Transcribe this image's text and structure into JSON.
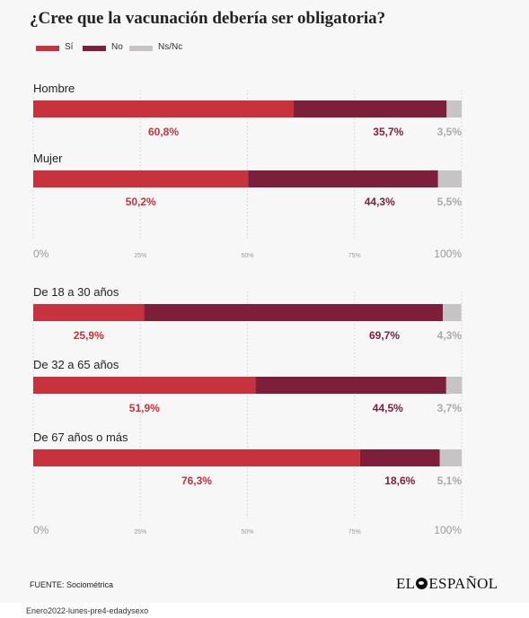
{
  "title": "¿Cree que la vacunación debería ser obligatoria?",
  "colors": {
    "si": "#c8323c",
    "no": "#7d1e3a",
    "nsnc": "#c6c4c4",
    "label_nsnc": "#a9a9a9",
    "background": "#f7f7f7"
  },
  "legend": [
    {
      "label": "Sí",
      "color": "#c8323c"
    },
    {
      "label": "No",
      "color": "#7d1e3a"
    },
    {
      "label": "Ns/Nc",
      "color": "#c6c4c4"
    }
  ],
  "chart_data": [
    {
      "type": "bar",
      "stacked": true,
      "orientation": "horizontal",
      "title": "¿Cree que la vacunación debería ser obligatoria?",
      "categories": [
        "Hombre",
        "Mujer"
      ],
      "series": [
        {
          "name": "Sí",
          "values": [
            60.8,
            50.2
          ],
          "labels": [
            "60,8%",
            "50,2%"
          ]
        },
        {
          "name": "No",
          "values": [
            35.7,
            44.3
          ],
          "labels": [
            "35,7%",
            "44,3%"
          ]
        },
        {
          "name": "Ns/Nc",
          "values": [
            3.5,
            5.5
          ],
          "labels": [
            "3,5%",
            "5,5%"
          ]
        }
      ],
      "xlim": [
        0,
        100
      ],
      "ticks": [
        {
          "value": 0,
          "label": "0%"
        },
        {
          "value": 25,
          "label": "25%"
        },
        {
          "value": 50,
          "label": "50%"
        },
        {
          "value": 75,
          "label": "75%"
        },
        {
          "value": 100,
          "label": "100%"
        }
      ],
      "grid": true,
      "legend_position": "top-left"
    },
    {
      "type": "bar",
      "stacked": true,
      "orientation": "horizontal",
      "categories": [
        "De 18 a 30 años",
        "De 32 a 65 años",
        "De 67 años o más"
      ],
      "series": [
        {
          "name": "Sí",
          "values": [
            25.9,
            51.9,
            76.3
          ],
          "labels": [
            "25,9%",
            "51,9%",
            "76,3%"
          ]
        },
        {
          "name": "No",
          "values": [
            69.7,
            44.5,
            18.6
          ],
          "labels": [
            "69,7%",
            "44,5%",
            "18,6%"
          ]
        },
        {
          "name": "Ns/Nc",
          "values": [
            4.3,
            3.7,
            5.1
          ],
          "labels": [
            "4,3%",
            "3,7%",
            "5,1%"
          ]
        }
      ],
      "xlim": [
        0,
        100
      ],
      "ticks": [
        {
          "value": 0,
          "label": "0%"
        },
        {
          "value": 25,
          "label": "25%"
        },
        {
          "value": 50,
          "label": "50%"
        },
        {
          "value": 75,
          "label": "75%"
        },
        {
          "value": 100,
          "label": "100%"
        }
      ],
      "grid": true
    }
  ],
  "source": "FUENTE: Sociométrica",
  "logo": {
    "left": "EL",
    "right": "ESPAÑOL"
  },
  "filename": "Enero2022-lunes-pre4-edadysexo"
}
